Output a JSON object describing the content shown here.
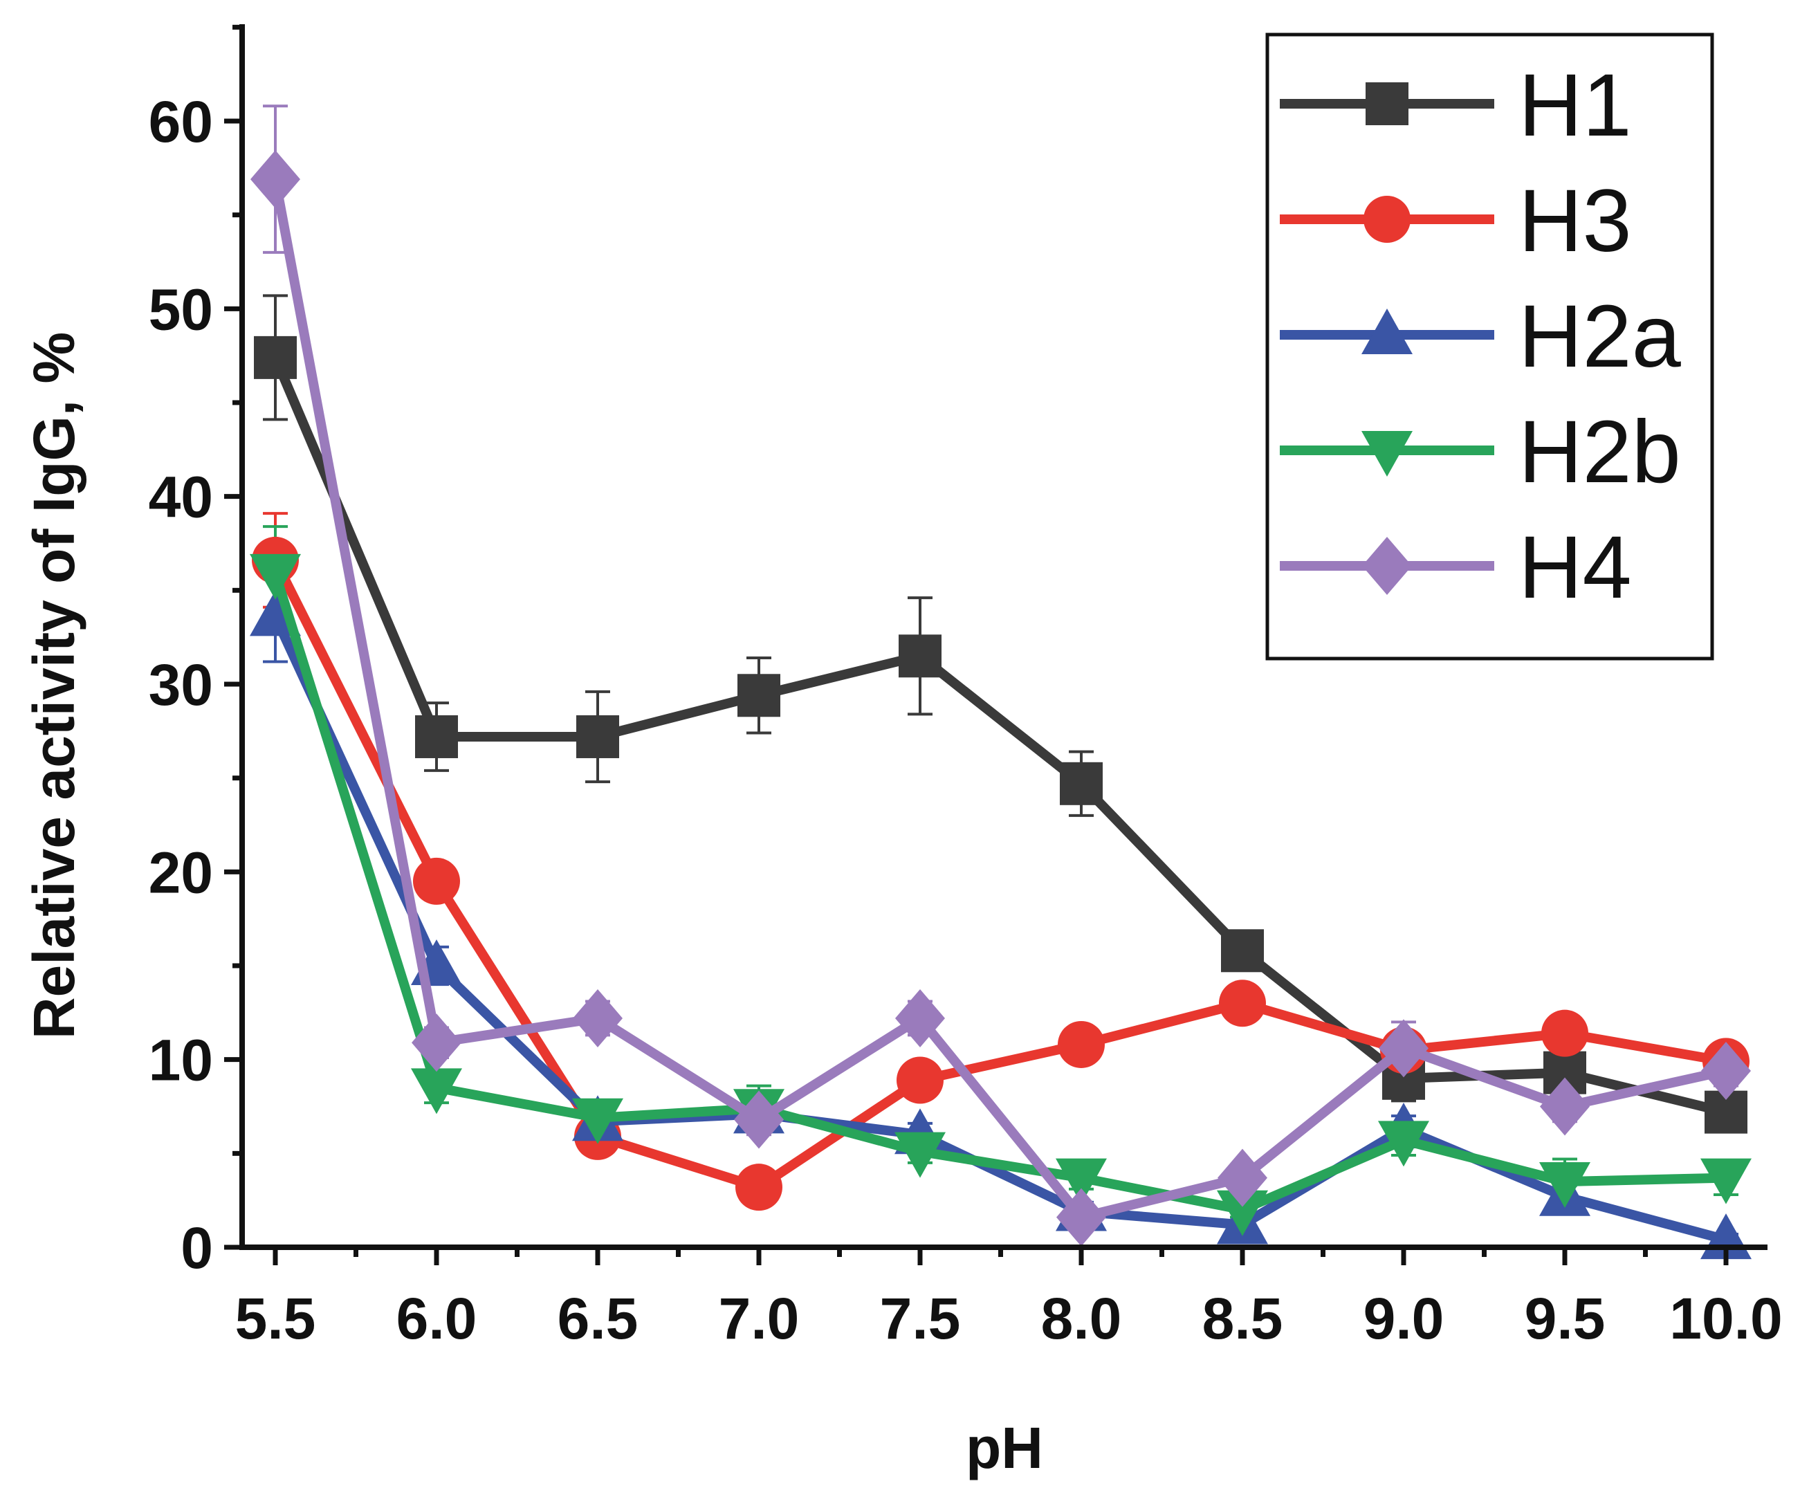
{
  "chart_data": {
    "type": "line",
    "title": "",
    "xlabel": "pH",
    "ylabel": "Relative activity of IgG, %",
    "x": [
      5.5,
      6.0,
      6.5,
      7.0,
      7.5,
      8.0,
      8.5,
      9.0,
      9.5,
      10.0
    ],
    "x_tick_labels": [
      "5.5",
      "6.0",
      "6.5",
      "7.0",
      "7.5",
      "8.0",
      "8.5",
      "9.0",
      "9.5",
      "10.0"
    ],
    "y_ticks": [
      0,
      10,
      20,
      30,
      40,
      50,
      60
    ],
    "y_tick_labels": [
      "0",
      "10",
      "20",
      "30",
      "40",
      "50",
      "60"
    ],
    "xlim": [
      5.5,
      10.0
    ],
    "ylim": [
      0,
      65
    ],
    "grid": false,
    "legend_position": "top-right",
    "series": [
      {
        "name": "H1",
        "color": "#3a3a3a",
        "marker": "square",
        "values": [
          47.4,
          27.2,
          27.2,
          29.4,
          31.5,
          24.7,
          15.8,
          9.0,
          9.3,
          7.2
        ],
        "errors": [
          3.3,
          1.8,
          2.4,
          2.0,
          3.1,
          1.7,
          1.0,
          1.2,
          1.0,
          0.8
        ]
      },
      {
        "name": "H3",
        "color": "#e8372f",
        "marker": "circle",
        "values": [
          36.6,
          19.5,
          5.9,
          3.2,
          8.9,
          10.8,
          13.0,
          10.5,
          11.4,
          9.9
        ],
        "errors": [
          2.5,
          1.0,
          0.7,
          0.5,
          0.8,
          0.7,
          0.8,
          0.9,
          0.9,
          0.8
        ]
      },
      {
        "name": "H2a",
        "color": "#3a55a5",
        "marker": "triangle-up",
        "values": [
          33.6,
          15.0,
          6.7,
          7.1,
          6.0,
          1.9,
          1.2,
          6.3,
          2.7,
          0.4
        ],
        "errors": [
          2.4,
          1.0,
          0.8,
          0.7,
          0.6,
          0.5,
          0.4,
          0.7,
          0.6,
          0.3
        ]
      },
      {
        "name": "H2b",
        "color": "#28a45a",
        "marker": "triangle-down",
        "values": [
          35.9,
          8.5,
          6.9,
          7.4,
          5.1,
          3.7,
          2.0,
          5.7,
          3.5,
          3.7
        ],
        "errors": [
          2.5,
          0.8,
          0.7,
          1.2,
          0.6,
          0.6,
          0.4,
          0.8,
          1.2,
          0.9
        ]
      },
      {
        "name": "H4",
        "color": "#9a7bbc",
        "marker": "diamond",
        "values": [
          56.9,
          10.9,
          12.2,
          6.8,
          12.2,
          1.6,
          3.7,
          10.6,
          7.5,
          9.4
        ],
        "errors": [
          3.9,
          0.8,
          0.9,
          0.8,
          0.9,
          0.5,
          0.6,
          1.4,
          0.8,
          0.8
        ]
      }
    ]
  }
}
